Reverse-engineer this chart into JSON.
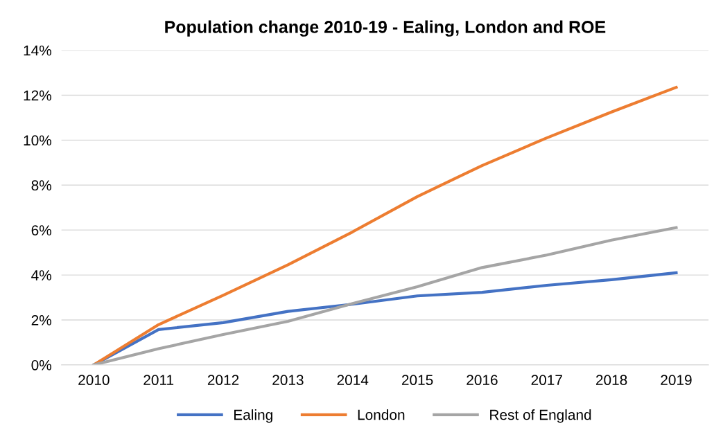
{
  "chart_data": {
    "type": "line",
    "title": "Population change 2010-19 - Ealing, London and ROE",
    "categories": [
      "2010",
      "2011",
      "2012",
      "2013",
      "2014",
      "2015",
      "2016",
      "2017",
      "2018",
      "2019"
    ],
    "series": [
      {
        "name": "Ealing",
        "color": "#4472c4",
        "values": [
          0,
          1.57,
          1.88,
          2.38,
          2.7,
          3.07,
          3.23,
          3.54,
          3.79,
          4.1
        ]
      },
      {
        "name": "London",
        "color": "#ed7d31",
        "values": [
          0,
          1.79,
          3.1,
          4.45,
          5.92,
          7.49,
          8.87,
          10.1,
          11.25,
          12.35
        ]
      },
      {
        "name": "Rest of England",
        "color": "#a5a5a5",
        "values": [
          0,
          0.72,
          1.35,
          1.94,
          2.73,
          3.48,
          4.33,
          4.89,
          5.55,
          6.11
        ]
      }
    ],
    "ylim": [
      0,
      14
    ],
    "yticks": [
      {
        "value": 0,
        "label": "0%"
      },
      {
        "value": 2,
        "label": "2%"
      },
      {
        "value": 4,
        "label": "4%"
      },
      {
        "value": 6,
        "label": "6%"
      },
      {
        "value": 8,
        "label": "8%"
      },
      {
        "value": 10,
        "label": "10%"
      },
      {
        "value": 12,
        "label": "12%"
      },
      {
        "value": 14,
        "label": "14%"
      }
    ],
    "grid": "y",
    "legend": "bottom",
    "marker": "none",
    "line_style": "solid"
  }
}
